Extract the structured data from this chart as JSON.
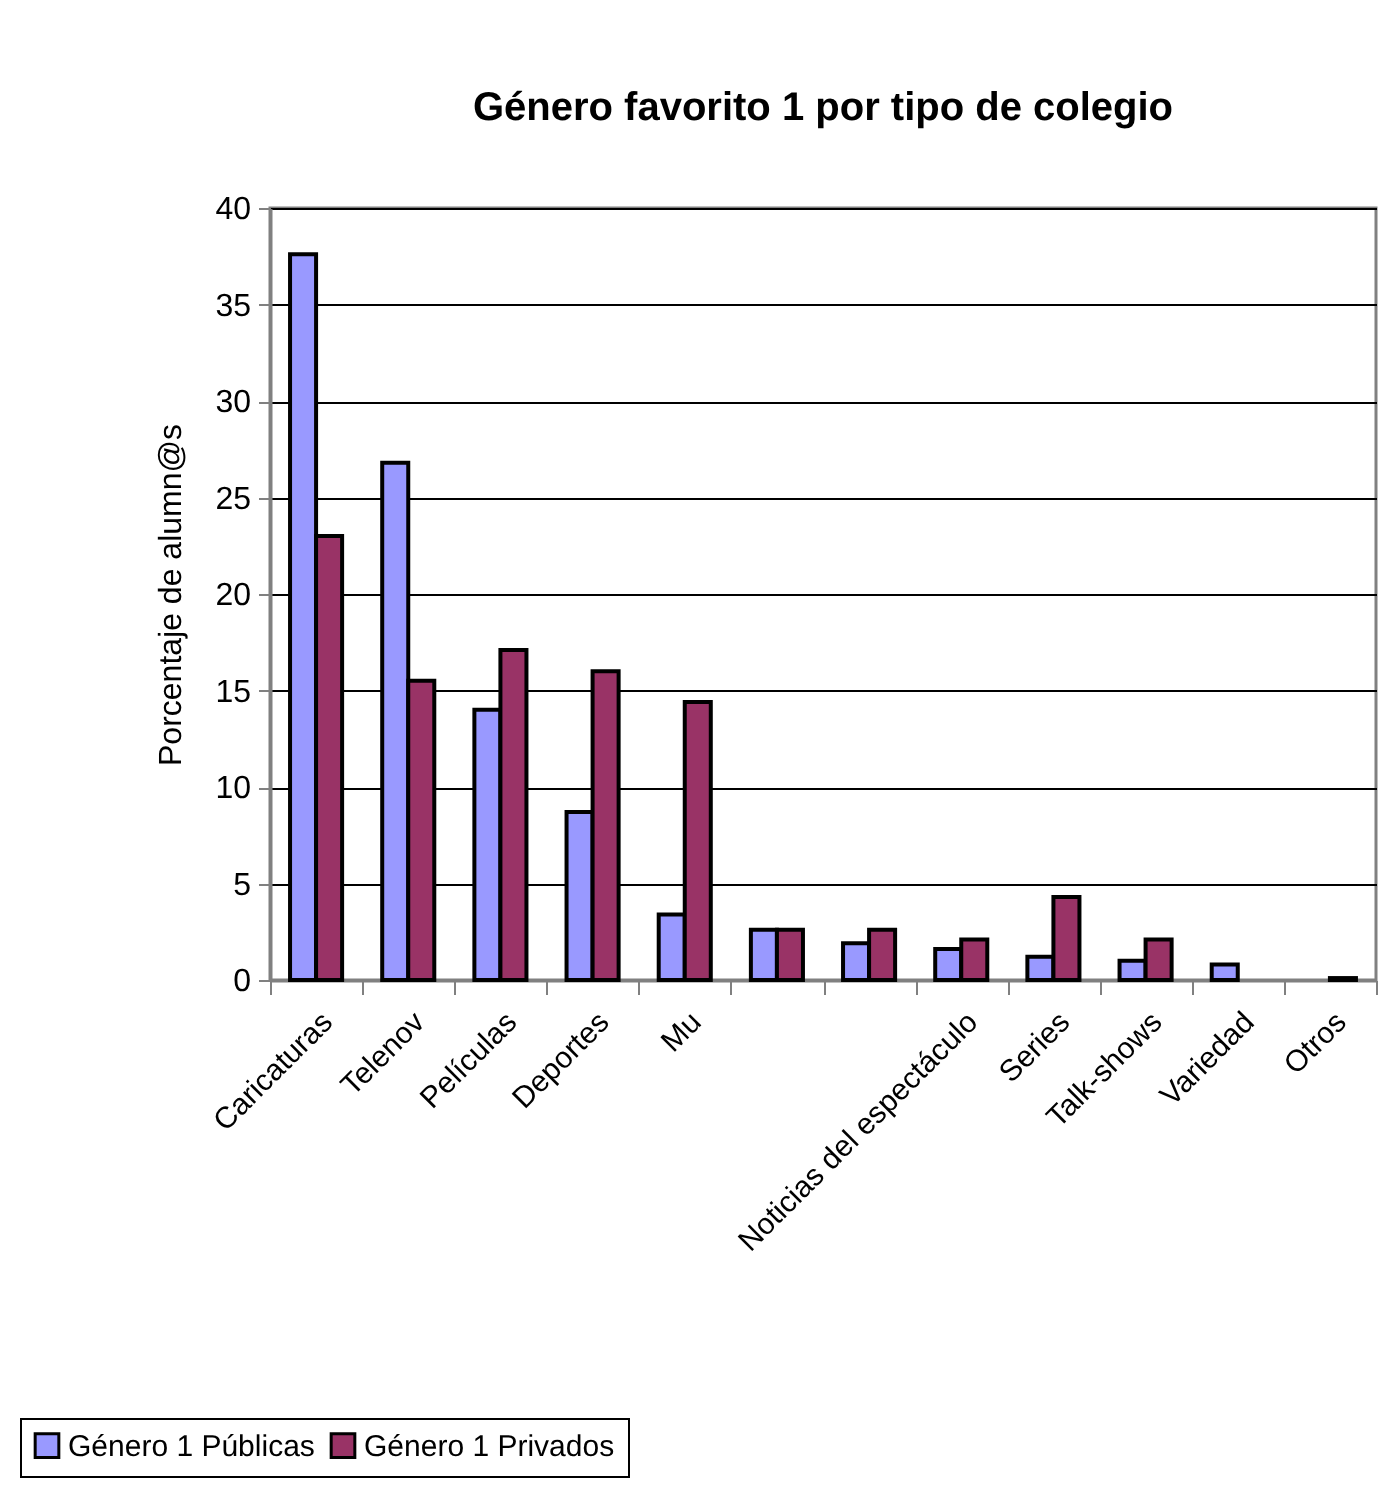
{
  "chart_data": {
    "type": "bar",
    "title": "Género favorito 1 por tipo de colegio",
    "ylabel": "Porcentaje de alumn@s",
    "categories": [
      "Caricaturas",
      "Telenov",
      "Películas",
      "Deportes",
      "Mu",
      null,
      null,
      "Noticias del espectáculo",
      "Series",
      "Talk-shows",
      "Variedad",
      "Otros"
    ],
    "series": [
      {
        "name": "Género 1 Públicas",
        "color": "#9999ff",
        "values": [
          37.6,
          26.8,
          14,
          8.7,
          3.4,
          2.6,
          1.9,
          1.6,
          1.2,
          1.0,
          0.8,
          null
        ]
      },
      {
        "name": "Género 1 Privados",
        "color": "#993366",
        "values": [
          23,
          15.5,
          17.1,
          16,
          14.4,
          2.6,
          2.6,
          2.1,
          4.3,
          2.1,
          null,
          0.1
        ]
      }
    ],
    "ylim": [
      0,
      40
    ],
    "yticks": [
      0,
      5,
      10,
      15,
      20,
      25,
      30,
      35,
      40
    ],
    "grid": "y",
    "legend": "bottom left"
  }
}
